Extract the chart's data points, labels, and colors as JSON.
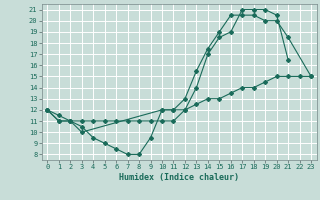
{
  "xlabel": "Humidex (Indice chaleur)",
  "bg_color": "#c8ddd8",
  "grid_color": "#ffffff",
  "line_color": "#1a6b5a",
  "xlim": [
    -0.5,
    23.5
  ],
  "ylim": [
    7.5,
    21.5
  ],
  "xticks": [
    0,
    1,
    2,
    3,
    4,
    5,
    6,
    7,
    8,
    9,
    10,
    11,
    12,
    13,
    14,
    15,
    16,
    17,
    18,
    19,
    20,
    21,
    22,
    23
  ],
  "yticks": [
    8,
    9,
    10,
    11,
    12,
    13,
    14,
    15,
    16,
    17,
    18,
    19,
    20,
    21
  ],
  "line1_x": [
    0,
    1,
    2,
    3,
    4,
    5,
    6,
    7,
    8,
    9,
    10,
    11,
    12,
    13,
    14,
    15,
    16,
    17,
    18,
    19,
    20,
    21
  ],
  "line1_y": [
    12,
    11.5,
    11,
    10.5,
    9.5,
    9,
    8.5,
    8,
    8,
    9.5,
    12,
    12,
    12,
    14,
    17,
    18.5,
    19,
    21,
    21,
    21,
    20.5,
    16.5
  ],
  "line2_x": [
    0,
    1,
    2,
    3,
    10,
    11,
    12,
    13,
    14,
    15,
    16,
    17,
    18,
    19,
    20,
    21,
    23
  ],
  "line2_y": [
    12,
    11,
    11,
    10,
    12,
    12,
    13,
    15.5,
    17.5,
    19,
    20.5,
    20.5,
    20.5,
    20,
    20,
    18.5,
    15
  ],
  "line3_x": [
    0,
    1,
    2,
    3,
    4,
    5,
    6,
    7,
    8,
    9,
    10,
    11,
    12,
    13,
    14,
    15,
    16,
    17,
    18,
    19,
    20,
    21,
    22,
    23
  ],
  "line3_y": [
    12,
    11,
    11,
    11,
    11,
    11,
    11,
    11,
    11,
    11,
    11,
    11,
    12,
    12.5,
    13,
    13,
    13.5,
    14,
    14,
    14.5,
    15,
    15,
    15,
    15
  ]
}
